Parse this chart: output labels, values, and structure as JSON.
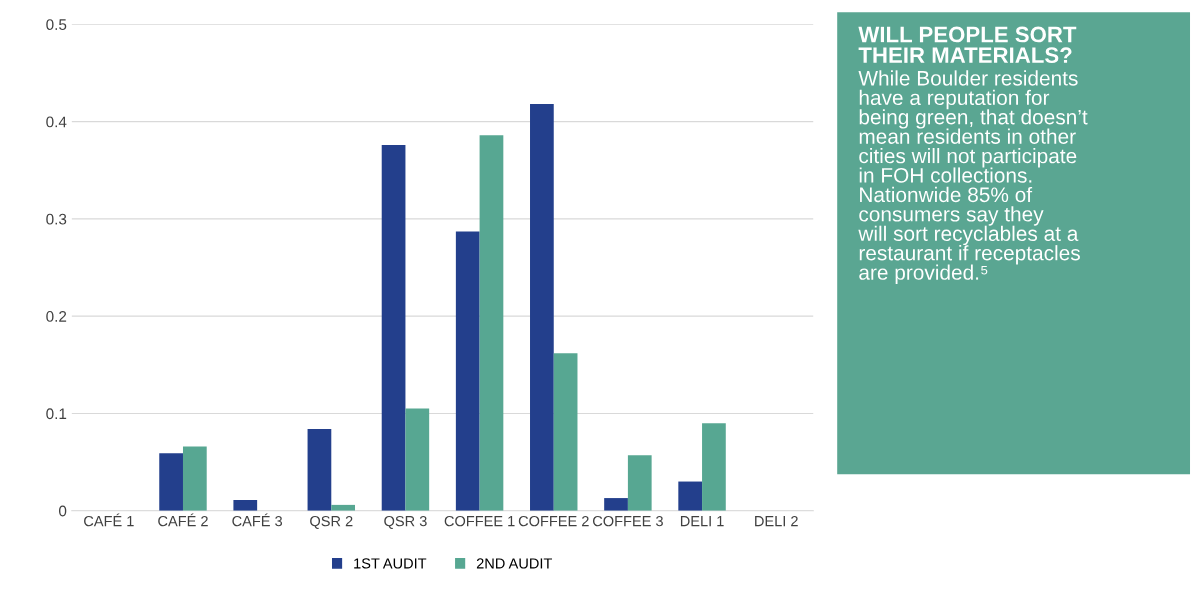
{
  "chart_data": {
    "type": "bar",
    "categories": [
      "CAFÉ 1",
      "CAFÉ 2",
      "CAFÉ 3",
      "QSR 2",
      "QSR 3",
      "COFFEE 1",
      "COFFEE 2",
      "COFFEE 3",
      "DELI 1",
      "DELI 2"
    ],
    "series": [
      {
        "name": "1ST AUDIT",
        "color": "#233f8c",
        "values": [
          0,
          0.059,
          0.011,
          0.084,
          0.376,
          0.287,
          0.418,
          0.013,
          0.03,
          null
        ]
      },
      {
        "name": "2ND AUDIT",
        "color": "#57a792",
        "values": [
          0,
          0.066,
          0,
          0.006,
          0.105,
          0.386,
          0.162,
          0.057,
          0.09,
          null
        ]
      }
    ],
    "ylim": [
      0,
      0.5
    ],
    "yticks": [
      0,
      0.1,
      0.2,
      0.3,
      0.4,
      0.5
    ],
    "grid": "y",
    "legend": "bottom",
    "annotations": [
      "WILL PEOPLE SORT\nTHEIR MATERIALS?",
      "While Boulder residents\nhave a reputation for\nbeing green, that doesn’t\nmean residents in other\ncities will not participate\nin FOH collections.\nNationwide 85% of\nconsumers say they\nwill sort recyclables at a\nrestaurant if receptacles\nare provided.⁵"
    ]
  }
}
